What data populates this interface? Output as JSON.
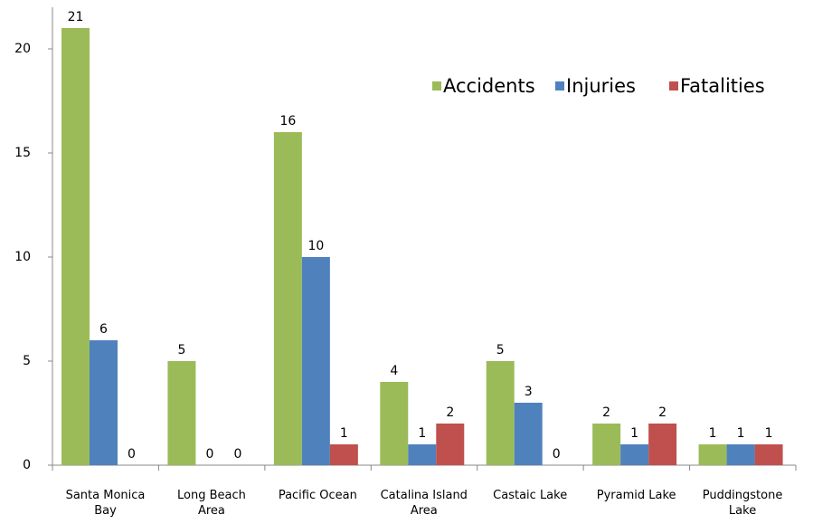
{
  "chart_data": {
    "type": "bar",
    "categories": [
      "Santa Monica\nBay",
      "Long Beach\nArea",
      "Pacific Ocean",
      "Catalina Island\nArea",
      "Castaic Lake",
      "Pyramid Lake",
      "Puddingstone\nLake"
    ],
    "series": [
      {
        "name": "Accidents",
        "color": "#9bbb59",
        "values": [
          21,
          5,
          16,
          4,
          5,
          2,
          1
        ]
      },
      {
        "name": "Injuries",
        "color": "#4f81bd",
        "values": [
          6,
          0,
          10,
          1,
          3,
          1,
          1
        ]
      },
      {
        "name": "Fatalities",
        "color": "#c0504d",
        "values": [
          0,
          0,
          1,
          2,
          0,
          2,
          1
        ]
      }
    ],
    "ylim": [
      0,
      22
    ],
    "yticks": [
      0,
      5,
      10,
      15,
      20
    ],
    "legend": "upper right"
  }
}
